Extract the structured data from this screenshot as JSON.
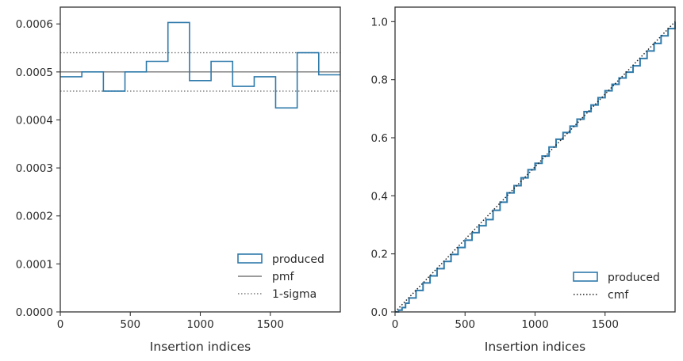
{
  "colors": {
    "produced": "#2f7aab",
    "reference": "#7a7a7a",
    "cmf": "#222222",
    "axes": "#333333"
  },
  "chart_data": [
    {
      "type": "histogram",
      "xlabel": "Insertion indices",
      "ylabel": "",
      "xlim": [
        0,
        2000
      ],
      "ylim": [
        0,
        0.000635
      ],
      "xticks": [
        0,
        500,
        1000,
        1500
      ],
      "xtick_labels": [
        "0",
        "500",
        "1000",
        "1500"
      ],
      "yticks": [
        0,
        0.0001,
        0.0002,
        0.0003,
        0.0004,
        0.0005,
        0.0006
      ],
      "ytick_labels": [
        "0.0000",
        "0.0001",
        "0.0002",
        "0.0003",
        "0.0004",
        "0.0005",
        "0.0006"
      ],
      "bin_edges": [
        0,
        154,
        308,
        462,
        615,
        769,
        923,
        1077,
        1231,
        1385,
        1538,
        1692,
        1846,
        2000
      ],
      "series": [
        {
          "name": "produced",
          "values": [
            0.00049,
            0.0005,
            0.00046,
            0.0005,
            0.000522,
            0.000603,
            0.000482,
            0.000522,
            0.00047,
            0.00049,
            0.000425,
            0.00054,
            0.000494
          ]
        }
      ],
      "hlines": [
        {
          "name": "pmf",
          "y": 0.0005,
          "style": "solid"
        },
        {
          "name": "1-sigma",
          "y": 0.00054,
          "style": "dotted"
        },
        {
          "name": "1-sigma",
          "y": 0.00046,
          "style": "dotted",
          "legend": false
        }
      ],
      "legend": {
        "position": "lower right",
        "entries": [
          "produced",
          "pmf",
          "1-sigma"
        ]
      }
    },
    {
      "type": "line",
      "xlabel": "Insertion indices",
      "ylabel": "",
      "xlim": [
        0,
        2000
      ],
      "ylim": [
        0,
        1.05
      ],
      "xticks": [
        0,
        500,
        1000,
        1500
      ],
      "xtick_labels": [
        "0",
        "500",
        "1000",
        "1500"
      ],
      "yticks": [
        0,
        0.2,
        0.4,
        0.6,
        0.8,
        1.0
      ],
      "ytick_labels": [
        "0.0",
        "0.2",
        "0.4",
        "0.6",
        "0.8",
        "1.0"
      ],
      "series": [
        {
          "name": "produced",
          "style": "step",
          "x": [
            0,
            25,
            50,
            75,
            100,
            150,
            200,
            250,
            300,
            350,
            400,
            450,
            500,
            550,
            600,
            650,
            700,
            750,
            800,
            850,
            900,
            950,
            1000,
            1050,
            1100,
            1150,
            1200,
            1250,
            1300,
            1350,
            1400,
            1450,
            1500,
            1550,
            1600,
            1650,
            1700,
            1750,
            1800,
            1850,
            1900,
            1950,
            2000
          ],
          "y": [
            0,
            0.006,
            0.015,
            0.03,
            0.048,
            0.074,
            0.1,
            0.124,
            0.149,
            0.174,
            0.198,
            0.222,
            0.247,
            0.273,
            0.297,
            0.318,
            0.35,
            0.378,
            0.41,
            0.435,
            0.462,
            0.49,
            0.512,
            0.537,
            0.568,
            0.595,
            0.618,
            0.64,
            0.664,
            0.69,
            0.713,
            0.738,
            0.762,
            0.784,
            0.806,
            0.826,
            0.848,
            0.873,
            0.899,
            0.925,
            0.951,
            0.976,
            1.0
          ]
        },
        {
          "name": "cmf",
          "style": "dotted",
          "x": [
            0,
            2000
          ],
          "y": [
            0,
            1.0
          ]
        }
      ],
      "legend": {
        "position": "lower right",
        "entries": [
          "produced",
          "cmf"
        ]
      }
    }
  ]
}
